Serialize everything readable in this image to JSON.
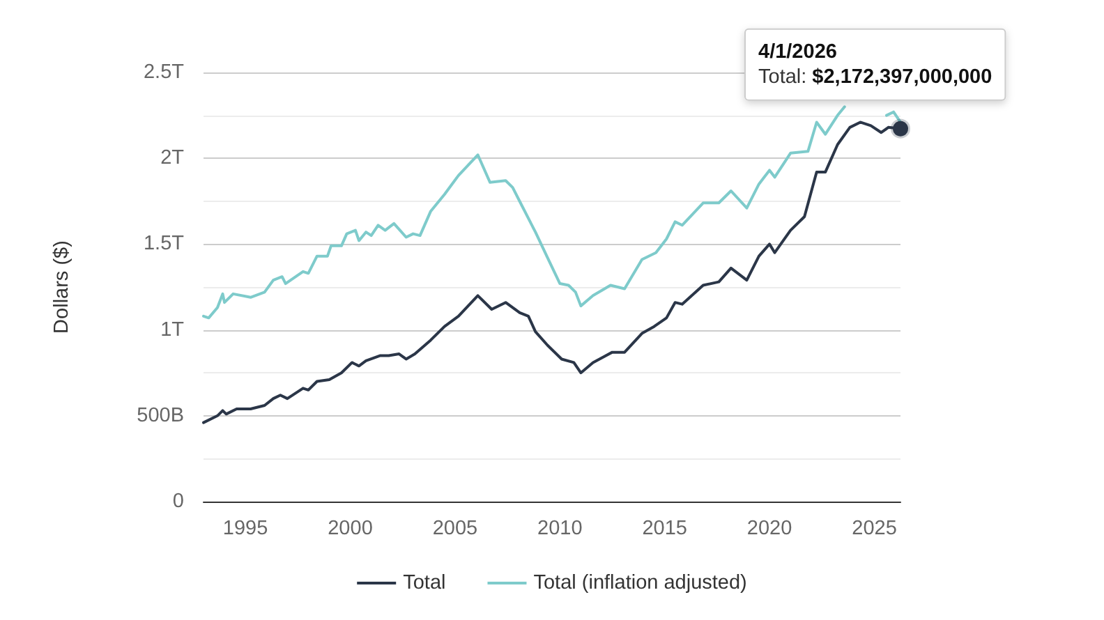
{
  "chart_data": {
    "type": "line",
    "ylabel": "Dollars ($)",
    "xlim": [
      "1993-01",
      "2026-04"
    ],
    "xticks": [
      "1995",
      "2000",
      "2005",
      "2010",
      "2015",
      "2020",
      "2025"
    ],
    "ylim": [
      0,
      2500000000000.0
    ],
    "yticks": [
      0,
      {
        "value": 250000000000.0,
        "label": null
      },
      {
        "value": 500000000000.0,
        "label": "500B"
      },
      {
        "value": 750000000000.0,
        "label": null
      },
      {
        "value": 1000000000000.0,
        "label": "1T"
      },
      {
        "value": 1250000000000.0,
        "label": null
      },
      {
        "value": 1500000000000.0,
        "label": "1.5T"
      },
      {
        "value": 1750000000000.0,
        "label": null
      },
      {
        "value": 2000000000000.0,
        "label": "2T"
      },
      {
        "value": 2250000000000.0,
        "label": null
      },
      {
        "value": 2500000000000.0,
        "label": "2.5T"
      }
    ],
    "grid": "y",
    "legend": "bottom",
    "series": [
      {
        "name": "Total",
        "color": "#2b3648",
        "x": [
          "1993-01",
          "1993-09",
          "1993-12",
          "1994-02",
          "1994-08",
          "1995-04",
          "1995-12",
          "1996-05",
          "1996-09",
          "1997-01",
          "1997-10",
          "1998-01",
          "1998-06",
          "1999-01",
          "1999-08",
          "2000-02",
          "2000-06",
          "2000-10",
          "2001-06",
          "2001-11",
          "2002-05",
          "2002-09",
          "2003-02",
          "2003-11",
          "2004-07",
          "2005-03",
          "2006-02",
          "2006-10",
          "2007-06",
          "2008-02",
          "2008-07",
          "2008-11",
          "2009-06",
          "2010-02",
          "2010-09",
          "2011-01",
          "2011-08",
          "2012-07",
          "2013-02",
          "2013-12",
          "2014-07",
          "2015-02",
          "2015-07",
          "2015-11",
          "2016-11",
          "2017-08",
          "2018-03",
          "2018-12",
          "2019-07",
          "2020-01",
          "2020-04",
          "2021-01",
          "2021-09",
          "2022-04",
          "2022-09",
          "2023-04",
          "2023-11",
          "2024-05",
          "2024-11",
          "2025-05",
          "2025-09",
          "2026-04"
        ],
        "values": [
          460000000000.0,
          500000000000.0,
          530000000000.0,
          510000000000.0,
          540000000000.0,
          540000000000.0,
          560000000000.0,
          600000000000.0,
          620000000000.0,
          600000000000.0,
          660000000000.0,
          650000000000.0,
          700000000000.0,
          710000000000.0,
          750000000000.0,
          810000000000.0,
          790000000000.0,
          820000000000.0,
          850000000000.0,
          850000000000.0,
          860000000000.0,
          830000000000.0,
          860000000000.0,
          940000000000.0,
          1020000000000.0,
          1080000000000.0,
          1200000000000.0,
          1120000000000.0,
          1160000000000.0,
          1100000000000.0,
          1080000000000.0,
          990000000000.0,
          910000000000.0,
          830000000000.0,
          810000000000.0,
          750000000000.0,
          810000000000.0,
          870000000000.0,
          870000000000.0,
          980000000000.0,
          1020000000000.0,
          1070000000000.0,
          1160000000000.0,
          1150000000000.0,
          1260000000000.0,
          1280000000000.0,
          1360000000000.0,
          1290000000000.0,
          1430000000000.0,
          1500000000000.0,
          1450000000000.0,
          1580000000000.0,
          1660000000000.0,
          1920000000000.0,
          1920000000000.0,
          2080000000000.0,
          2180000000000.0,
          2210000000000.0,
          2190000000000.0,
          2150000000000.0,
          2180000000000.0,
          2172397000000
        ]
      },
      {
        "name": "Total (inflation adjusted)",
        "color": "#7ecbcb",
        "x": [
          "1993-01",
          "1993-04",
          "1993-09",
          "1993-12",
          "1994-01",
          "1994-06",
          "1995-04",
          "1995-12",
          "1996-05",
          "1996-10",
          "1996-12",
          "1997-10",
          "1998-01",
          "1998-06",
          "1998-12",
          "1999-02",
          "1999-08",
          "1999-11",
          "2000-04",
          "2000-06",
          "2000-10",
          "2001-01",
          "2001-05",
          "2001-09",
          "2002-02",
          "2002-09",
          "2003-01",
          "2003-05",
          "2003-11",
          "2004-07",
          "2005-03",
          "2006-02",
          "2006-09",
          "2007-06",
          "2007-10",
          "2008-03",
          "2008-07",
          "2008-11",
          "2009-06",
          "2010-01",
          "2010-06",
          "2010-10",
          "2011-01",
          "2011-08",
          "2012-06",
          "2013-02",
          "2013-12",
          "2014-08",
          "2015-02",
          "2015-07",
          "2015-11",
          "2016-11",
          "2017-08",
          "2018-03",
          "2018-12",
          "2019-07",
          "2020-01",
          "2020-04",
          "2021-01",
          "2021-11",
          "2022-04",
          "2022-09",
          "2023-04",
          "2023-08",
          "2024-03",
          "2025-03",
          "2025-08",
          "2025-12",
          "2026-04"
        ],
        "values": [
          1080000000000.0,
          1070000000000.0,
          1130000000000.0,
          1210000000000.0,
          1160000000000.0,
          1210000000000.0,
          1190000000000.0,
          1220000000000.0,
          1290000000000.0,
          1310000000000.0,
          1270000000000.0,
          1340000000000.0,
          1330000000000.0,
          1430000000000.0,
          1430000000000.0,
          1490000000000.0,
          1490000000000.0,
          1560000000000.0,
          1580000000000.0,
          1520000000000.0,
          1570000000000.0,
          1550000000000.0,
          1610000000000.0,
          1580000000000.0,
          1620000000000.0,
          1540000000000.0,
          1560000000000.0,
          1550000000000.0,
          1690000000000.0,
          1790000000000.0,
          1900000000000.0,
          2020000000000.0,
          1860000000000.0,
          1870000000000.0,
          1830000000000.0,
          1730000000000.0,
          1650000000000.0,
          1570000000000.0,
          1420000000000.0,
          1270000000000.0,
          1260000000000.0,
          1220000000000.0,
          1140000000000.0,
          1200000000000.0,
          1260000000000.0,
          1240000000000.0,
          1410000000000.0,
          1450000000000.0,
          1530000000000.0,
          1630000000000.0,
          1610000000000.0,
          1740000000000.0,
          1740000000000.0,
          1810000000000.0,
          1710000000000.0,
          1850000000000.0,
          1930000000000.0,
          1890000000000.0,
          2030000000000.0,
          2040000000000.0,
          2210000000000.0,
          2140000000000.0,
          2250000000000.0,
          2300000000000.0,
          null,
          null,
          2250000000000.0,
          2270000000000.0,
          2210000000000.0
        ]
      }
    ],
    "annotations": [
      {
        "text": "4/1/2026\nTotal: $2,172,397,000,000",
        "x": "2026-04-01",
        "y": 2172397000000
      }
    ]
  }
}
